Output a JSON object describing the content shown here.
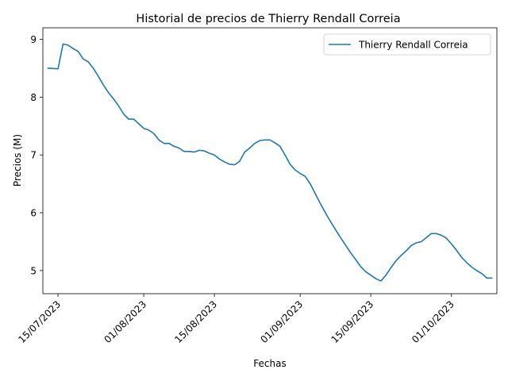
{
  "chart_data": {
    "type": "line",
    "title": "Historial de precios de Thierry Rendall Correia",
    "xlabel": "Fechas",
    "ylabel": "Precios (M)",
    "xlim": [
      "2023-07-12",
      "2023-10-10"
    ],
    "ylim": [
      4.6,
      9.2
    ],
    "xticks": [
      "2023-07-15",
      "2023-08-01",
      "2023-08-15",
      "2023-09-01",
      "2023-09-15",
      "2023-10-01"
    ],
    "xtick_labels": [
      "15/07/2023",
      "01/08/2023",
      "15/08/2023",
      "01/09/2023",
      "15/09/2023",
      "01/10/2023"
    ],
    "yticks": [
      5,
      6,
      7,
      8,
      9
    ],
    "ytick_labels": [
      "5",
      "6",
      "7",
      "8",
      "9"
    ],
    "grid": false,
    "legend": "top-right",
    "series_color": "#1f77b4",
    "series": [
      {
        "name": "Thierry Rendall Correia",
        "points": [
          [
            "2023-07-13",
            8.5
          ],
          [
            "2023-07-15",
            8.49
          ],
          [
            "2023-07-16",
            8.92
          ],
          [
            "2023-07-17",
            8.9
          ],
          [
            "2023-07-18",
            8.84
          ],
          [
            "2023-07-19",
            8.79
          ],
          [
            "2023-07-20",
            8.66
          ],
          [
            "2023-07-21",
            8.61
          ],
          [
            "2023-07-22",
            8.5
          ],
          [
            "2023-07-23",
            8.36
          ],
          [
            "2023-07-24",
            8.21
          ],
          [
            "2023-07-25",
            8.08
          ],
          [
            "2023-07-26",
            7.97
          ],
          [
            "2023-07-27",
            7.85
          ],
          [
            "2023-07-28",
            7.71
          ],
          [
            "2023-07-29",
            7.62
          ],
          [
            "2023-07-30",
            7.62
          ],
          [
            "2023-07-31",
            7.54
          ],
          [
            "2023-08-01",
            7.46
          ],
          [
            "2023-08-02",
            7.43
          ],
          [
            "2023-08-03",
            7.37
          ],
          [
            "2023-08-04",
            7.26
          ],
          [
            "2023-08-05",
            7.2
          ],
          [
            "2023-08-06",
            7.2
          ],
          [
            "2023-08-07",
            7.15
          ],
          [
            "2023-08-08",
            7.12
          ],
          [
            "2023-08-09",
            7.06
          ],
          [
            "2023-08-10",
            7.06
          ],
          [
            "2023-08-11",
            7.05
          ],
          [
            "2023-08-12",
            7.08
          ],
          [
            "2023-08-13",
            7.07
          ],
          [
            "2023-08-14",
            7.03
          ],
          [
            "2023-08-15",
            7.0
          ],
          [
            "2023-08-16",
            6.93
          ],
          [
            "2023-08-17",
            6.88
          ],
          [
            "2023-08-18",
            6.84
          ],
          [
            "2023-08-19",
            6.83
          ],
          [
            "2023-08-20",
            6.89
          ],
          [
            "2023-08-21",
            7.05
          ],
          [
            "2023-08-22",
            7.12
          ],
          [
            "2023-08-23",
            7.2
          ],
          [
            "2023-08-24",
            7.25
          ],
          [
            "2023-08-25",
            7.26
          ],
          [
            "2023-08-26",
            7.26
          ],
          [
            "2023-08-27",
            7.21
          ],
          [
            "2023-08-28",
            7.15
          ],
          [
            "2023-08-29",
            7.0
          ],
          [
            "2023-08-30",
            6.84
          ],
          [
            "2023-08-31",
            6.74
          ],
          [
            "2023-09-01",
            6.68
          ],
          [
            "2023-09-02",
            6.63
          ],
          [
            "2023-09-03",
            6.5
          ],
          [
            "2023-09-04",
            6.33
          ],
          [
            "2023-09-05",
            6.16
          ],
          [
            "2023-09-06",
            6.0
          ],
          [
            "2023-09-07",
            5.85
          ],
          [
            "2023-09-08",
            5.71
          ],
          [
            "2023-09-09",
            5.57
          ],
          [
            "2023-09-10",
            5.44
          ],
          [
            "2023-09-11",
            5.31
          ],
          [
            "2023-09-12",
            5.19
          ],
          [
            "2023-09-13",
            5.07
          ],
          [
            "2023-09-14",
            4.98
          ],
          [
            "2023-09-15",
            4.92
          ],
          [
            "2023-09-16",
            4.86
          ],
          [
            "2023-09-17",
            4.82
          ],
          [
            "2023-09-18",
            4.92
          ],
          [
            "2023-09-19",
            5.05
          ],
          [
            "2023-09-20",
            5.17
          ],
          [
            "2023-09-21",
            5.26
          ],
          [
            "2023-09-22",
            5.34
          ],
          [
            "2023-09-23",
            5.43
          ],
          [
            "2023-09-24",
            5.48
          ],
          [
            "2023-09-25",
            5.5
          ],
          [
            "2023-09-26",
            5.57
          ],
          [
            "2023-09-27",
            5.64
          ],
          [
            "2023-09-28",
            5.64
          ],
          [
            "2023-09-29",
            5.61
          ],
          [
            "2023-09-30",
            5.56
          ],
          [
            "2023-10-01",
            5.46
          ],
          [
            "2023-10-02",
            5.35
          ],
          [
            "2023-10-03",
            5.23
          ],
          [
            "2023-10-04",
            5.14
          ],
          [
            "2023-10-05",
            5.06
          ],
          [
            "2023-10-06",
            5.0
          ],
          [
            "2023-10-07",
            4.95
          ],
          [
            "2023-10-08",
            4.87
          ],
          [
            "2023-10-09",
            4.87
          ]
        ]
      }
    ]
  }
}
